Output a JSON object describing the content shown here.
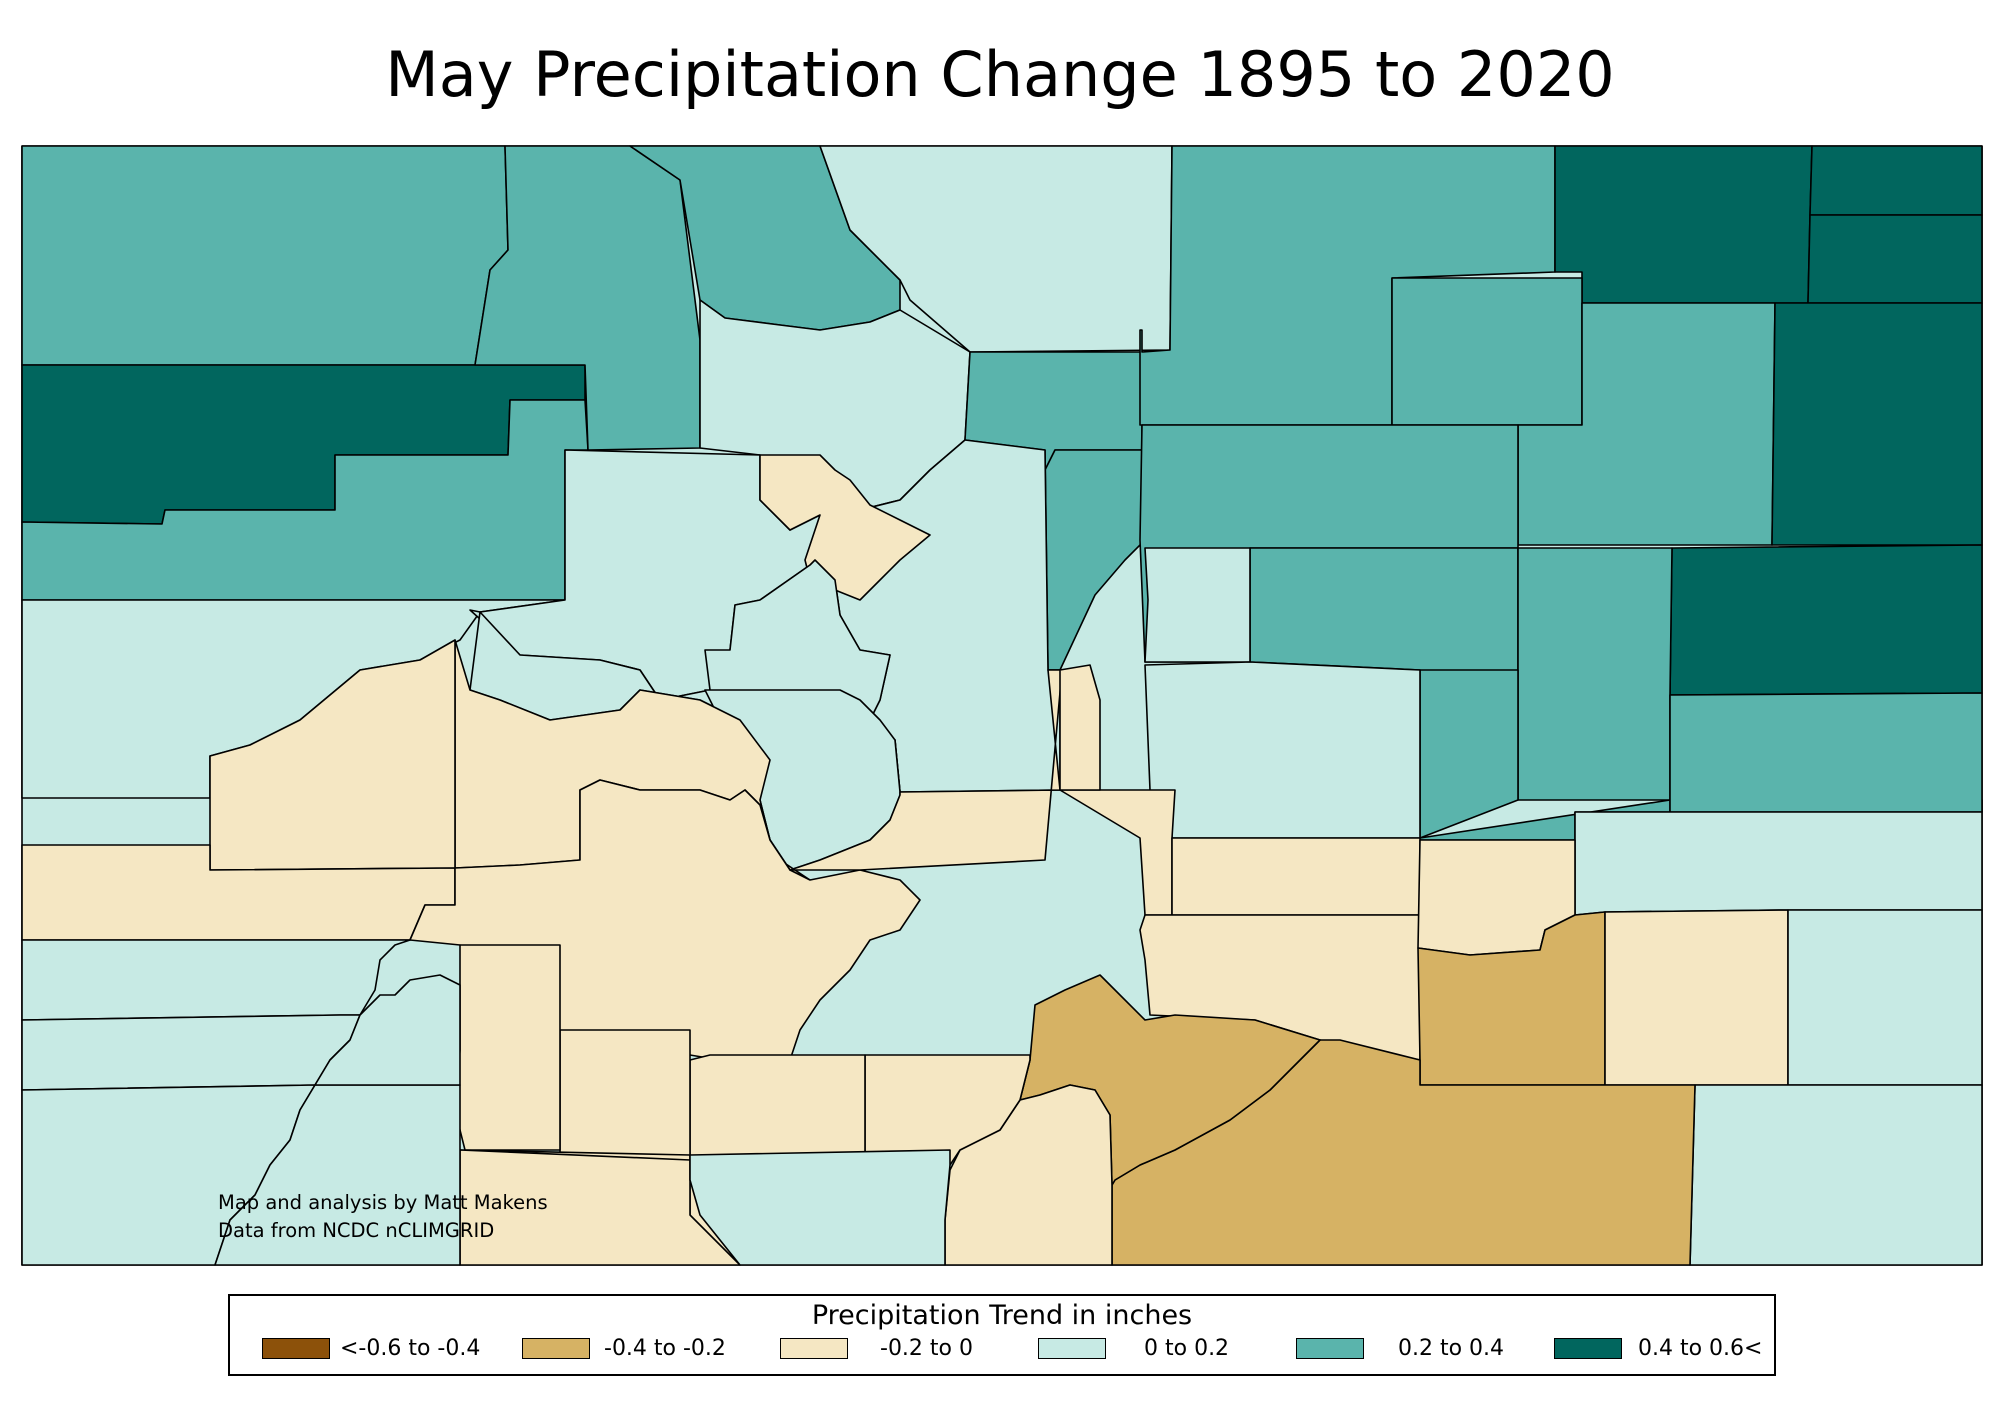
{
  "title": "May Precipitation Change 1895 to 2020",
  "credits": {
    "line1": "Map and analysis by Matt Makens",
    "line2": "Data from NCDC nCLIMGRID"
  },
  "legend": {
    "title": "Precipitation Trend in inches",
    "items": [
      {
        "label": "<-0.6 to -0.4",
        "color": "#8c510a"
      },
      {
        "label": "-0.4 to -0.2",
        "color": "#d6b264"
      },
      {
        "label": "-0.2 to 0",
        "color": "#f5e7c3"
      },
      {
        "label": "0 to 0.2",
        "color": "#c7eae4"
      },
      {
        "label": "0.2 to 0.4",
        "color": "#5ab4ac"
      },
      {
        "label": "0.4 to 0.6<",
        "color": "#01665e"
      }
    ]
  },
  "colors": {
    "c1": "#8c510a",
    "c2": "#d6b264",
    "c3": "#f5e7c3",
    "c4": "#c7eae4",
    "c5": "#5ab4ac",
    "c6": "#01665e"
  }
}
